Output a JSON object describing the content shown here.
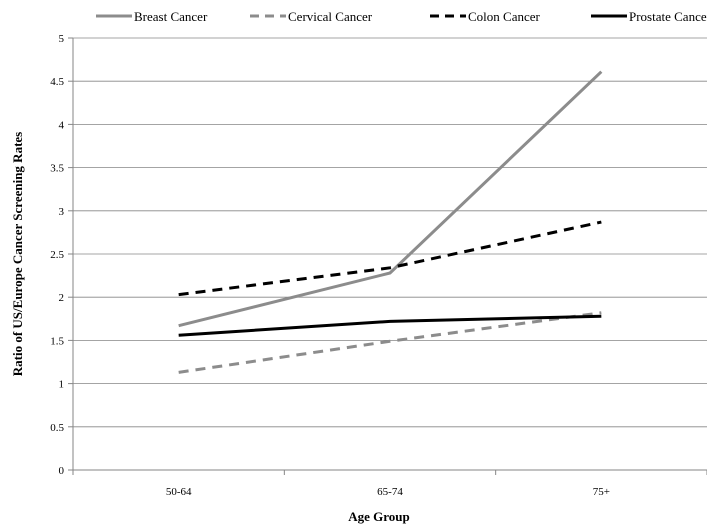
{
  "chart_data": {
    "type": "line",
    "categories": [
      "50-64",
      "65-74",
      "75+"
    ],
    "series": [
      {
        "name": "Breast Cancer",
        "values": [
          1.67,
          2.28,
          4.61
        ],
        "color": "#8c8c8c",
        "dash": "solid"
      },
      {
        "name": "Cervical Cancer",
        "values": [
          1.13,
          1.49,
          1.82
        ],
        "color": "#8c8c8c",
        "dash": "dashed"
      },
      {
        "name": "Colon Cancer",
        "values": [
          2.03,
          2.34,
          2.87
        ],
        "color": "#000000",
        "dash": "dashed"
      },
      {
        "name": "Prostate Cancer",
        "values": [
          1.56,
          1.72,
          1.78
        ],
        "color": "#000000",
        "dash": "solid"
      }
    ],
    "xlabel": "Age Group",
    "ylabel": "Ratio of US/Europe Cancer Screening Rates",
    "ylim": [
      0,
      5
    ],
    "yticks": [
      "0",
      "0.5",
      "1",
      "1.5",
      "2",
      "2.5",
      "3",
      "3.5",
      "4",
      "4.5",
      "5"
    ],
    "grid": true,
    "legend": "top"
  }
}
